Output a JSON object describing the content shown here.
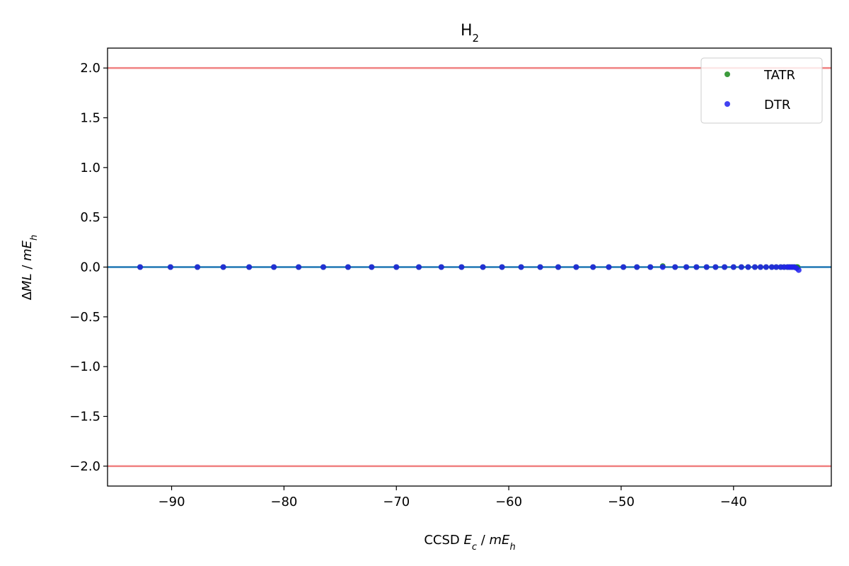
{
  "chart_data": {
    "type": "scatter",
    "title": "H",
    "title_subscript": "2",
    "xlabel": {
      "prefix": "CCSD ",
      "E": "E",
      "E_sub": "c",
      "sep": " / ",
      "unit": "mE",
      "unit_sub": "h"
    },
    "ylabel": {
      "delta": "Δ",
      "ml": "ML",
      "sep": " / ",
      "unit": "mE",
      "unit_sub": "h"
    },
    "xlim": [
      -95.7,
      -31.3
    ],
    "ylim": [
      -2.2,
      2.2
    ],
    "xticks": [
      -90,
      -80,
      -70,
      -60,
      -50,
      -40
    ],
    "xtick_labels": [
      "−90",
      "−80",
      "−70",
      "−60",
      "−50",
      "−40"
    ],
    "yticks": [
      2.0,
      1.5,
      1.0,
      0.5,
      0.0,
      -0.5,
      -1.0,
      -1.5,
      -2.0
    ],
    "ytick_labels": [
      "2.0",
      "1.5",
      "1.0",
      "0.5",
      "0.0",
      "−0.5",
      "−1.0",
      "−1.5",
      "−2.0"
    ],
    "grid": false,
    "legend_position": "top-right",
    "reference_lines": [
      {
        "y": 2.0,
        "color": "#f08080"
      },
      {
        "y": -2.0,
        "color": "#f08080"
      },
      {
        "y": 0.0,
        "color": "#1f77b4"
      }
    ],
    "series": [
      {
        "name": "TATR",
        "color": "#1a8a1a",
        "x": [
          -92.8,
          -90.1,
          -87.7,
          -85.4,
          -83.1,
          -80.9,
          -78.7,
          -76.5,
          -74.3,
          -72.2,
          -70.0,
          -68.0,
          -66.0,
          -64.2,
          -62.3,
          -60.6,
          -58.9,
          -57.2,
          -55.6,
          -54.0,
          -52.5,
          -51.1,
          -49.8,
          -48.6,
          -47.4,
          -46.3,
          -45.2,
          -44.2,
          -43.3,
          -42.4,
          -41.6,
          -40.8,
          -40.0,
          -39.3,
          -38.7,
          -38.1,
          -37.6,
          -37.1,
          -36.6,
          -36.2,
          -35.8,
          -35.5,
          -35.2,
          -35.0,
          -34.8,
          -34.6,
          -34.4,
          -34.3
        ],
        "y": [
          0.0,
          0.0,
          0.0,
          0.0,
          0.0,
          0.0,
          0.0,
          0.0,
          0.0,
          0.0,
          0.0,
          0.0,
          0.0,
          0.0,
          0.0,
          0.0,
          0.0,
          0.0,
          0.0,
          0.0,
          0.0,
          0.0,
          0.0,
          0.0,
          0.0,
          0.01,
          0.0,
          0.0,
          0.0,
          0.0,
          0.0,
          0.0,
          0.0,
          0.0,
          0.0,
          0.0,
          0.0,
          0.0,
          0.0,
          0.0,
          0.0,
          0.0,
          0.0,
          0.0,
          0.0,
          0.0,
          0.0,
          0.0
        ]
      },
      {
        "name": "DTR",
        "color": "#2020ee",
        "x": [
          -92.8,
          -90.1,
          -87.7,
          -85.4,
          -83.1,
          -80.9,
          -78.7,
          -76.5,
          -74.3,
          -72.2,
          -70.0,
          -68.0,
          -66.0,
          -64.2,
          -62.3,
          -60.6,
          -58.9,
          -57.2,
          -55.6,
          -54.0,
          -52.5,
          -51.1,
          -49.8,
          -48.6,
          -47.4,
          -46.3,
          -45.2,
          -44.2,
          -43.3,
          -42.4,
          -41.6,
          -40.8,
          -40.0,
          -39.3,
          -38.7,
          -38.1,
          -37.6,
          -37.1,
          -36.6,
          -36.2,
          -35.8,
          -35.5,
          -35.2,
          -35.0,
          -34.8,
          -34.6,
          -34.4,
          -34.2
        ],
        "y": [
          0.0,
          0.0,
          0.0,
          0.0,
          0.0,
          0.0,
          0.0,
          0.0,
          0.0,
          0.0,
          0.0,
          0.0,
          0.0,
          0.0,
          0.0,
          0.0,
          0.0,
          0.0,
          0.0,
          0.0,
          0.0,
          0.0,
          0.0,
          0.0,
          0.0,
          0.0,
          0.0,
          0.0,
          0.0,
          0.0,
          0.0,
          0.0,
          0.0,
          0.0,
          0.0,
          0.0,
          0.0,
          0.0,
          0.0,
          0.0,
          0.0,
          0.0,
          0.0,
          0.0,
          0.0,
          0.0,
          -0.01,
          -0.03
        ]
      }
    ]
  }
}
